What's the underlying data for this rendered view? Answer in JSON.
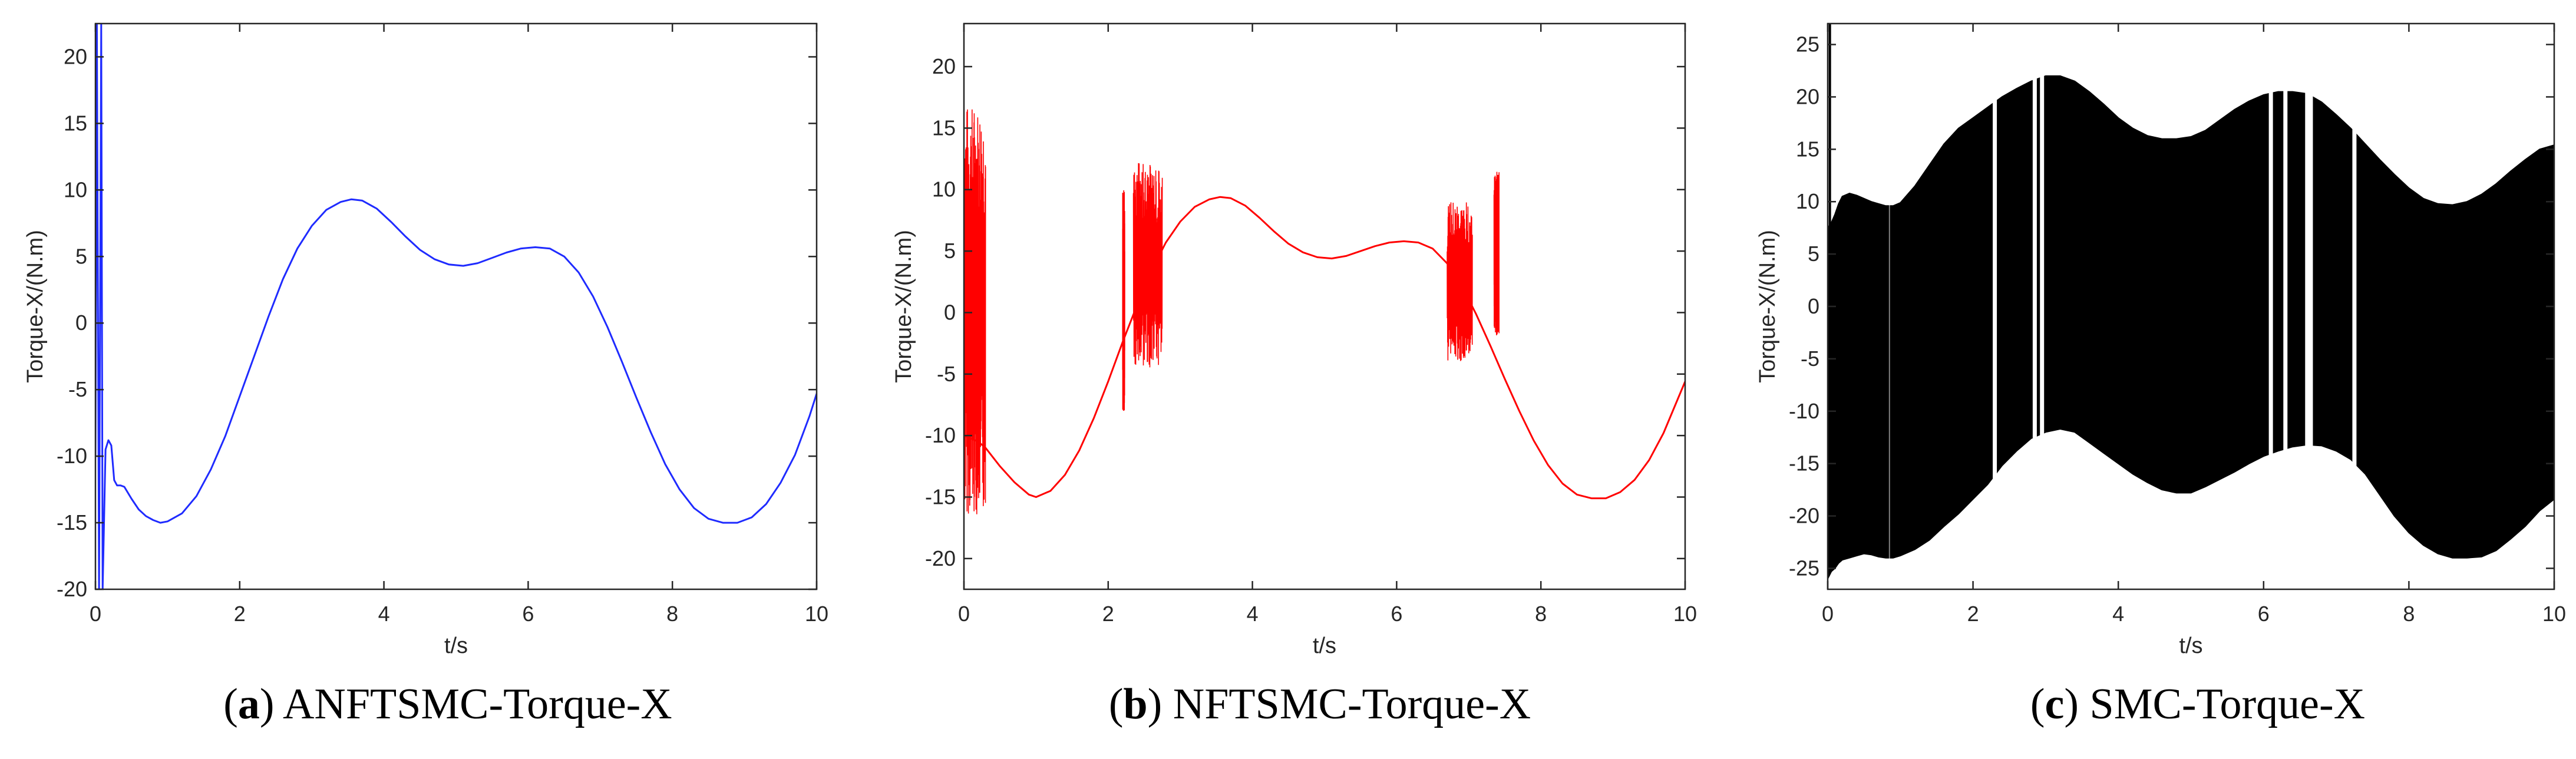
{
  "chart_data": [
    {
      "type": "line",
      "panel_letter": "a",
      "caption": "ANFTSMC-Torque-X",
      "xlabel": "t/s",
      "ylabel": "Torque-X/(N.m)",
      "xlim": [
        0,
        10
      ],
      "ylim": [
        -20,
        22.5
      ],
      "xticks": [
        0,
        2,
        4,
        6,
        8,
        10
      ],
      "yticks": [
        -20,
        -15,
        -10,
        -5,
        0,
        5,
        10,
        15,
        20
      ],
      "grid": false,
      "color": "#1f2bff",
      "series": [
        {
          "x": [
            0.0,
            0.02,
            0.05,
            0.08,
            0.1,
            0.14,
            0.18,
            0.22,
            0.26,
            0.3,
            0.35,
            0.4,
            0.5,
            0.6,
            0.7,
            0.8,
            0.9,
            1.0,
            1.2,
            1.4,
            1.6,
            1.8,
            2.0,
            2.2,
            2.4,
            2.6,
            2.8,
            3.0,
            3.2,
            3.4,
            3.55,
            3.7,
            3.9,
            4.1,
            4.3,
            4.5,
            4.7,
            4.9,
            5.1,
            5.3,
            5.5,
            5.7,
            5.9,
            6.1,
            6.3,
            6.5,
            6.7,
            6.9,
            7.1,
            7.3,
            7.5,
            7.7,
            7.9,
            8.1,
            8.3,
            8.5,
            8.7,
            8.9,
            9.1,
            9.3,
            9.5,
            9.7,
            9.9,
            10.0
          ],
          "y": [
            -10,
            22.5,
            -20,
            22.5,
            -20,
            -9.5,
            -8.8,
            -9.2,
            -11.8,
            -12.2,
            -12.2,
            -12.3,
            -13.2,
            -14.0,
            -14.5,
            -14.8,
            -15.0,
            -14.9,
            -14.3,
            -13.0,
            -11.0,
            -8.5,
            -5.5,
            -2.5,
            0.5,
            3.3,
            5.6,
            7.3,
            8.5,
            9.1,
            9.3,
            9.2,
            8.6,
            7.6,
            6.5,
            5.5,
            4.8,
            4.4,
            4.3,
            4.5,
            4.9,
            5.3,
            5.6,
            5.7,
            5.6,
            5.0,
            3.8,
            2.0,
            -0.3,
            -2.9,
            -5.6,
            -8.2,
            -10.6,
            -12.5,
            -13.9,
            -14.7,
            -15.0,
            -15.0,
            -14.6,
            -13.6,
            -12.0,
            -9.9,
            -7.0,
            -5.3
          ]
        }
      ]
    },
    {
      "type": "line",
      "panel_letter": "b",
      "caption": "NFTSMC-Torque-X",
      "xlabel": "t/s",
      "ylabel": "Torque-X/(N.m)",
      "xlim": [
        0,
        10
      ],
      "ylim": [
        -22.5,
        23.5
      ],
      "xticks": [
        0,
        2,
        4,
        6,
        8,
        10
      ],
      "yticks": [
        -20,
        -15,
        -10,
        -5,
        0,
        5,
        10,
        15,
        20
      ],
      "grid": false,
      "color": "#ff0000",
      "series": [
        {
          "x": [
            0.0,
            0.2,
            0.3,
            0.5,
            0.7,
            0.9,
            1.0,
            1.2,
            1.4,
            1.6,
            1.8,
            2.0,
            2.2,
            2.4,
            2.6,
            2.8,
            3.0,
            3.2,
            3.4,
            3.55,
            3.7,
            3.9,
            4.1,
            4.3,
            4.5,
            4.7,
            4.9,
            5.1,
            5.3,
            5.5,
            5.7,
            5.9,
            6.1,
            6.3,
            6.5,
            6.7,
            6.9,
            7.1,
            7.3,
            7.5,
            7.7,
            7.9,
            8.1,
            8.3,
            8.5,
            8.7,
            8.9,
            9.1,
            9.3,
            9.5,
            9.7,
            9.9,
            10.0
          ],
          "y": [
            -10.0,
            -10.5,
            -11.0,
            -12.5,
            -13.8,
            -14.8,
            -15.0,
            -14.5,
            -13.2,
            -11.2,
            -8.6,
            -5.6,
            -2.4,
            0.6,
            3.4,
            5.7,
            7.4,
            8.6,
            9.2,
            9.4,
            9.3,
            8.7,
            7.7,
            6.6,
            5.6,
            4.9,
            4.5,
            4.4,
            4.6,
            5.0,
            5.4,
            5.7,
            5.8,
            5.7,
            5.2,
            4.0,
            2.2,
            -0.1,
            -2.7,
            -5.4,
            -8.0,
            -10.4,
            -12.4,
            -13.9,
            -14.8,
            -15.1,
            -15.1,
            -14.6,
            -13.6,
            -12.0,
            -9.8,
            -7.0,
            -5.6
          ]
        }
      ],
      "chatter_bands": [
        {
          "x_range": [
            0.0,
            0.3
          ],
          "y_range": [
            -16.5,
            17.0
          ]
        },
        {
          "x_range": [
            2.2,
            2.23
          ],
          "y_range": [
            -8.0,
            10.0
          ]
        },
        {
          "x_range": [
            2.35,
            2.75
          ],
          "y_range": [
            -4.5,
            12.3
          ]
        },
        {
          "x_range": [
            6.7,
            7.05
          ],
          "y_range": [
            -4.0,
            9.0
          ]
        },
        {
          "x_range": [
            7.35,
            7.42
          ],
          "y_range": [
            -2.0,
            11.5
          ]
        }
      ]
    },
    {
      "type": "area",
      "panel_letter": "c",
      "caption": "SMC-Torque-X",
      "xlabel": "t/s",
      "ylabel": "Torque-X/(N.m)",
      "xlim": [
        0,
        10
      ],
      "ylim": [
        -27,
        27
      ],
      "xticks": [
        0,
        2,
        4,
        6,
        8,
        10
      ],
      "yticks": [
        -25,
        -20,
        -15,
        -10,
        -5,
        0,
        5,
        10,
        15,
        20,
        25
      ],
      "grid": false,
      "color": "#000000",
      "series": [
        {
          "x": [
            0.0,
            0.05,
            0.1,
            0.15,
            0.2,
            0.3,
            0.4,
            0.5,
            0.6,
            0.7,
            0.8,
            0.9,
            1.0,
            1.2,
            1.4,
            1.6,
            1.8,
            2.0,
            2.2,
            2.4,
            2.6,
            2.8,
            3.0,
            3.2,
            3.4,
            3.6,
            3.8,
            4.0,
            4.2,
            4.4,
            4.6,
            4.8,
            5.0,
            5.2,
            5.4,
            5.6,
            5.8,
            6.0,
            6.2,
            6.4,
            6.6,
            6.8,
            7.0,
            7.2,
            7.4,
            7.6,
            7.8,
            8.0,
            8.2,
            8.4,
            8.6,
            8.8,
            9.0,
            9.2,
            9.4,
            9.6,
            9.8,
            10.0
          ],
          "upper": [
            7.5,
            8.0,
            8.8,
            9.8,
            10.5,
            10.8,
            10.6,
            10.3,
            10.0,
            9.8,
            9.6,
            9.6,
            9.9,
            11.5,
            13.5,
            15.5,
            17.0,
            18.0,
            19.0,
            20.0,
            20.8,
            21.5,
            22.0,
            22.0,
            21.5,
            20.5,
            19.3,
            18.0,
            17.0,
            16.3,
            16.0,
            16.0,
            16.2,
            16.8,
            17.8,
            18.8,
            19.6,
            20.2,
            20.5,
            20.5,
            20.3,
            19.5,
            18.3,
            17.0,
            15.5,
            14.0,
            12.6,
            11.3,
            10.3,
            9.8,
            9.7,
            10.0,
            10.7,
            11.7,
            12.9,
            14.0,
            15.0,
            15.4
          ],
          "lower": [
            -26.0,
            -25.3,
            -25.0,
            -24.5,
            -24.2,
            -24.0,
            -23.8,
            -23.6,
            -23.7,
            -23.9,
            -24.0,
            -24.0,
            -23.8,
            -23.2,
            -22.3,
            -21.0,
            -19.8,
            -18.4,
            -17.0,
            -15.2,
            -13.8,
            -12.6,
            -12.0,
            -11.7,
            -12.0,
            -13.0,
            -14.0,
            -15.0,
            -16.0,
            -16.8,
            -17.5,
            -17.8,
            -17.8,
            -17.2,
            -16.5,
            -15.8,
            -15.0,
            -14.3,
            -13.8,
            -13.4,
            -13.2,
            -13.3,
            -13.8,
            -14.6,
            -16.0,
            -18.0,
            -20.0,
            -21.6,
            -22.8,
            -23.6,
            -24.0,
            -24.0,
            -23.9,
            -23.3,
            -22.2,
            -21.0,
            -19.5,
            -18.4
          ]
        }
      ],
      "gaps_x": [
        0.85,
        2.3,
        2.85,
        2.95,
        6.1,
        6.3,
        6.6,
        6.65,
        7.25
      ]
    }
  ]
}
